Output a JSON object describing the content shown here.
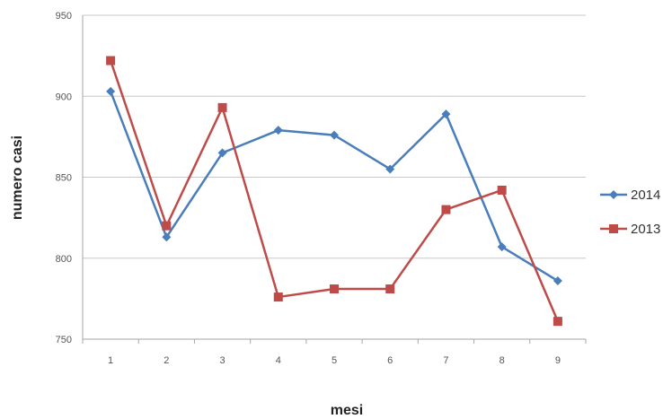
{
  "chart_data": {
    "type": "line",
    "title": "",
    "xlabel": "mesi",
    "ylabel": "numero casi",
    "categories": [
      "1",
      "2",
      "3",
      "4",
      "5",
      "6",
      "7",
      "8",
      "9"
    ],
    "ylim": [
      750,
      950
    ],
    "yticks": [
      750,
      800,
      850,
      900,
      950
    ],
    "grid": "horizontal",
    "legend_position": "right",
    "series": [
      {
        "name": "2014",
        "color": "#4a7ebb",
        "marker": "diamond",
        "values": [
          903,
          813,
          865,
          879,
          876,
          855,
          889,
          807,
          786
        ]
      },
      {
        "name": "2013",
        "color": "#be4b48",
        "marker": "square",
        "values": [
          922,
          820,
          893,
          776,
          781,
          781,
          830,
          842,
          761
        ]
      }
    ]
  }
}
